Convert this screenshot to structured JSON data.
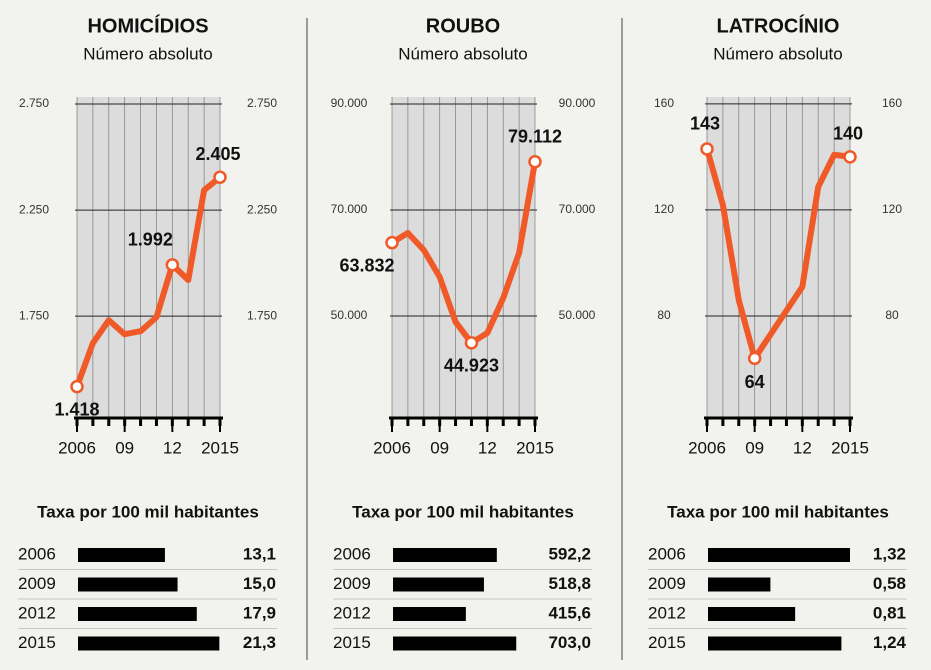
{
  "chart_data": [
    {
      "type": "line",
      "title": "HOMICÍDIOS",
      "subtitle": "Número absoluto",
      "x": [
        2006,
        2007,
        2008,
        2009,
        2010,
        2011,
        2012,
        2013,
        2014,
        2015
      ],
      "values": [
        1418,
        1623,
        1731,
        1665,
        1679,
        1745,
        1992,
        1920,
        2344,
        2405
      ],
      "value_labels": [
        "1.418",
        null,
        null,
        null,
        null,
        null,
        "1.992",
        null,
        null,
        "2.405"
      ],
      "color": "#f05a28",
      "xlim": [
        2006,
        2015
      ],
      "xticks": [
        2006,
        {
          "value": 2009,
          "label": "09"
        },
        {
          "value": 2012,
          "label": "12"
        },
        2015
      ],
      "ylim": [
        1270,
        2783
      ],
      "yticks": [
        {
          "value": 1750,
          "label": "1.750"
        },
        {
          "value": 2250,
          "label": "2.250"
        },
        {
          "value": 2750,
          "label": "2.750"
        }
      ]
    },
    {
      "type": "bar",
      "title": "Taxa por 100 mil habitantes",
      "categories": [
        "2006",
        "2009",
        "2012",
        "2015"
      ],
      "values": [
        13.1,
        15.0,
        17.9,
        21.3
      ],
      "value_labels": [
        "13,1",
        "15,0",
        "17,9",
        "21,3"
      ],
      "color": "#000000",
      "xlim": [
        0,
        21.4
      ]
    },
    {
      "type": "line",
      "title": "ROUBO",
      "subtitle": "Número absoluto",
      "x": [
        2006,
        2007,
        2008,
        2009,
        2010,
        2011,
        2012,
        2013,
        2014,
        2015
      ],
      "values": [
        63832,
        65660,
        62450,
        57360,
        48870,
        44923,
        46790,
        53400,
        61890,
        79112
      ],
      "value_labels": [
        "63.832",
        null,
        null,
        null,
        null,
        "44.923",
        null,
        null,
        null,
        "79.112"
      ],
      "color": "#f05a28",
      "xlim": [
        2006,
        2015
      ],
      "xticks": [
        2006,
        {
          "value": 2009,
          "label": "09"
        },
        {
          "value": 2012,
          "label": "12"
        },
        2015
      ],
      "ylim": [
        30750,
        91320
      ],
      "yticks": [
        {
          "value": 50000,
          "label": "50.000"
        },
        {
          "value": 70000,
          "label": "70.000"
        },
        {
          "value": 90000,
          "label": "90.000"
        }
      ]
    },
    {
      "type": "bar",
      "title": "Taxa por 100 mil habitantes",
      "categories": [
        "2006",
        "2009",
        "2012",
        "2015"
      ],
      "values": [
        592.2,
        518.8,
        415.6,
        703.0
      ],
      "value_labels": [
        "592,2",
        "518,8",
        "415,6",
        "703,0"
      ],
      "color": "#000000",
      "xlim": [
        0,
        810
      ]
    },
    {
      "type": "line",
      "title": "LATROCÍNIO",
      "subtitle": "Número absoluto",
      "x": [
        2006,
        2007,
        2008,
        2009,
        2010,
        2011,
        2012,
        2013,
        2014,
        2015
      ],
      "values": [
        143,
        121.9,
        86,
        64,
        73,
        82,
        91,
        128.7,
        140.8,
        140
      ],
      "value_labels": [
        "143",
        null,
        null,
        "64",
        null,
        null,
        null,
        null,
        null,
        "140"
      ],
      "color": "#f05a28",
      "xlim": [
        2006,
        2015
      ],
      "xticks": [
        2006,
        {
          "value": 2009,
          "label": "09"
        },
        {
          "value": 2012,
          "label": "12"
        },
        2015
      ],
      "ylim": [
        41.5,
        162.6
      ],
      "yticks": [
        80,
        120,
        160
      ]
    },
    {
      "type": "bar",
      "title": "Taxa por 100 mil habitantes",
      "categories": [
        "2006",
        "2009",
        "2012",
        "2015"
      ],
      "values": [
        1.32,
        0.58,
        0.81,
        1.24
      ],
      "value_labels": [
        "1,32",
        "0,58",
        "0,81",
        "1,24"
      ],
      "color": "#000000",
      "xlim": [
        0,
        1.32
      ]
    }
  ]
}
